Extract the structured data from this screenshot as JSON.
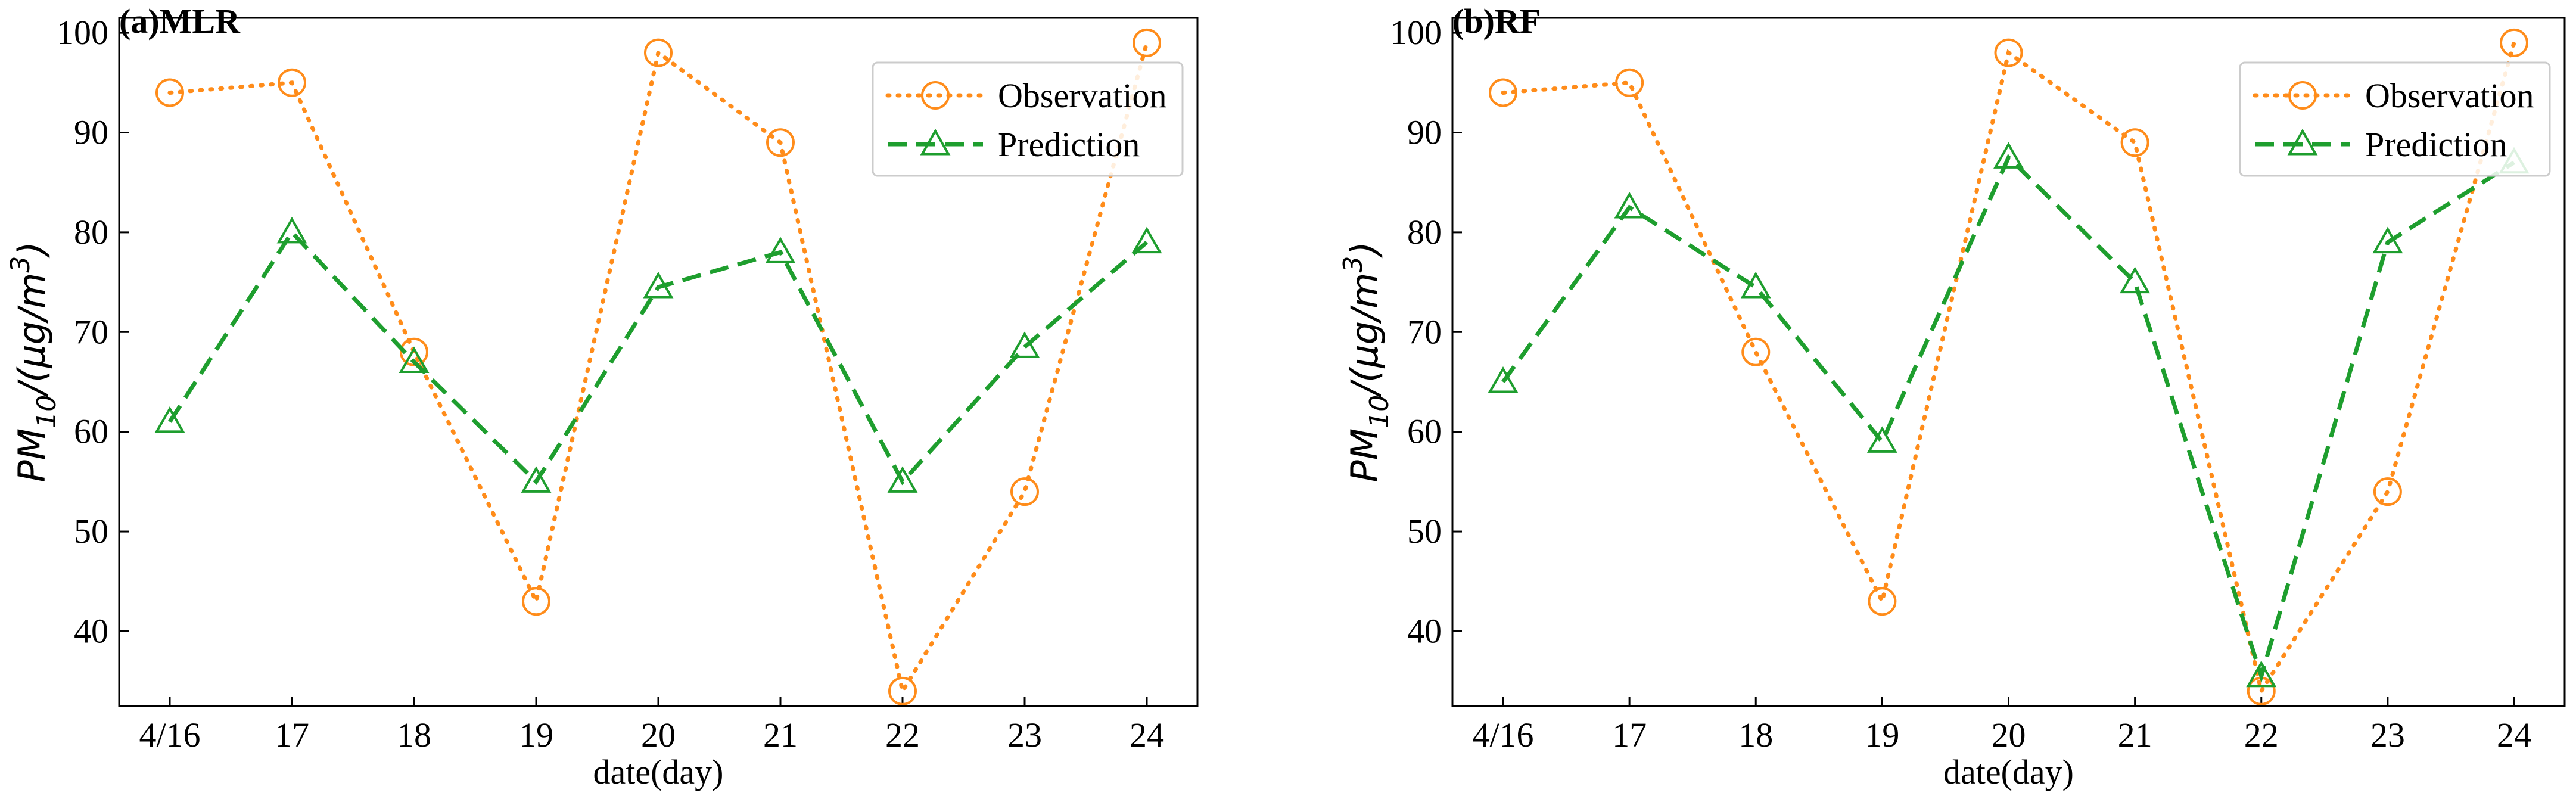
{
  "colors": {
    "observation": "#FF8C1A",
    "prediction": "#1E9E2E",
    "axis": "#000000"
  },
  "chart_data": [
    {
      "type": "line",
      "title": "(a)MLR",
      "xlabel": "date(day)",
      "ylabel_base": "PM",
      "ylabel_sub": "10",
      "ylabel_mid": "/(μg/m",
      "ylabel_sup": "3",
      "ylabel_end": ")",
      "categories": [
        "4/16",
        "17",
        "18",
        "19",
        "20",
        "21",
        "22",
        "23",
        "24"
      ],
      "yticks": [
        40,
        50,
        60,
        70,
        80,
        90,
        100
      ],
      "ylim": [
        32.5,
        101.5
      ],
      "legend_position": "top-right",
      "series": [
        {
          "name": "Observation",
          "marker": "circle",
          "style": "dotted",
          "values": [
            94,
            95,
            68,
            43,
            98,
            89,
            34,
            54,
            99
          ]
        },
        {
          "name": "Prediction",
          "marker": "triangle",
          "style": "dashed",
          "values": [
            61,
            80,
            67,
            55,
            74.5,
            78,
            55,
            68.5,
            79
          ]
        }
      ]
    },
    {
      "type": "line",
      "title": "(b)RF",
      "xlabel": "date(day)",
      "ylabel_base": "PM",
      "ylabel_sub": "10",
      "ylabel_mid": "/(μg/m",
      "ylabel_sup": "3",
      "ylabel_end": ")",
      "categories": [
        "4/16",
        "17",
        "18",
        "19",
        "20",
        "21",
        "22",
        "23",
        "24"
      ],
      "yticks": [
        40,
        50,
        60,
        70,
        80,
        90,
        100
      ],
      "ylim": [
        32.5,
        101.5
      ],
      "legend_position": "top-right",
      "series": [
        {
          "name": "Observation",
          "marker": "circle",
          "style": "dotted",
          "values": [
            94,
            95,
            68,
            43,
            98,
            89,
            34,
            54,
            99
          ]
        },
        {
          "name": "Prediction",
          "marker": "triangle",
          "style": "dashed",
          "values": [
            65,
            82.5,
            74.5,
            59,
            87.5,
            75,
            35.5,
            79,
            87
          ]
        }
      ]
    }
  ]
}
